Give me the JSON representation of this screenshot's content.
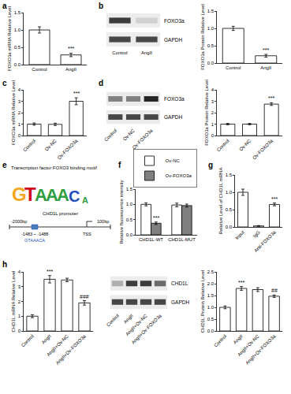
{
  "chart_data": [
    {
      "type": "bar",
      "y_title": "FOXO3a mRNA Relative Level",
      "categories": [
        "Control",
        "AngII"
      ],
      "values": [
        1.0,
        0.28
      ],
      "errors": [
        0.09,
        0.05
      ],
      "color": "#ffffff",
      "ylim": [
        0,
        1.5
      ],
      "yticks": [
        {
          "value": 0,
          "label": "0.0"
        },
        0.5,
        {
          "value": 1,
          "label": "1.0"
        },
        1.5
      ],
      "annotations": [
        {
          "category": "AngII",
          "text": "***"
        }
      ]
    },
    {
      "type": "bar",
      "y_title": "FOXO3a Protein Relative Level",
      "categories": [
        "Control",
        "AngII"
      ],
      "values": [
        1.0,
        0.21
      ],
      "errors": [
        0.06,
        0.04
      ],
      "color": "#ffffff",
      "ylim": [
        0,
        1.5
      ],
      "yticks": [
        {
          "value": 0,
          "label": "0.0"
        },
        0.5,
        {
          "value": 1,
          "label": "1.0"
        },
        1.5
      ],
      "annotations": [
        {
          "category": "AngII",
          "text": "***"
        }
      ]
    },
    {
      "type": "bar",
      "y_title": "FOXO3a mRNA Relative Level",
      "categories": [
        "Control",
        "Ov-NC",
        "Ov-FOXO3a"
      ],
      "values": [
        1.0,
        0.98,
        3.0
      ],
      "errors": [
        0.1,
        0.1,
        0.3
      ],
      "color": "#ffffff",
      "ylim": [
        0,
        4
      ],
      "yticks": [
        0,
        1,
        2,
        3,
        4
      ],
      "annotations": [
        {
          "category": "Ov-FOXO3a",
          "text": "***"
        }
      ]
    },
    {
      "type": "bar",
      "y_title": "FOXO3a Protein Relative Level",
      "categories": [
        "Control",
        "Ov-NC",
        "Ov-FOXO3a"
      ],
      "values": [
        1.0,
        1.0,
        2.75
      ],
      "errors": [
        0.06,
        0.06,
        0.12
      ],
      "color": "#ffffff",
      "ylim": [
        0,
        4
      ],
      "yticks": [
        0,
        1,
        2,
        3,
        4
      ],
      "annotations": [
        {
          "category": "Ov-FOXO3a",
          "text": "***"
        }
      ]
    },
    {
      "type": "bar",
      "y_title": "Relative fluorescence intensity",
      "categories": [
        "CHD1L-WT",
        "CHD1L-MUT"
      ],
      "series": [
        {
          "name": "Ov-NC",
          "color": "#ffffff",
          "values": [
            1.0,
            0.98
          ],
          "errors": [
            0.05,
            0.06
          ]
        },
        {
          "name": "Ov-FOXO3a",
          "color": "#808080",
          "values": [
            0.38,
            0.96
          ],
          "errors": [
            0.04,
            0.05
          ]
        }
      ],
      "ylim": [
        0,
        1.5
      ],
      "yticks": [
        {
          "value": 0,
          "label": "0.0"
        },
        0.5,
        {
          "value": 1,
          "label": "1.0"
        },
        1.5
      ],
      "legend": "upper right",
      "annotations": [
        {
          "category": "CHD1L-WT",
          "series": "Ov-FOXO3a",
          "text": "***"
        }
      ]
    },
    {
      "type": "bar",
      "y_title": "Relative Level of CHD1L mRNA",
      "categories": [
        "Input",
        "IgG",
        "Anti-FOXO3a"
      ],
      "values": [
        1.0,
        0.03,
        0.65
      ],
      "errors": [
        0.09,
        0.01,
        0.04
      ],
      "color": "#ffffff",
      "ylim": [
        0,
        1.5
      ],
      "yticks": [
        {
          "value": 0,
          "label": "0.0"
        },
        0.5,
        {
          "value": 1,
          "label": "1.0"
        },
        1.5
      ],
      "annotations": [
        {
          "category": "Anti-FOXO3a",
          "text": "***"
        }
      ]
    },
    {
      "type": "bar",
      "y_title": "CHD1L mRNA Relative Level",
      "categories": [
        "Control",
        "AngII",
        "AngII+Ov-NC",
        "AngII+Ov-FOXO3a"
      ],
      "values": [
        1.0,
        3.5,
        3.45,
        1.9
      ],
      "errors": [
        0.1,
        0.25,
        0.12,
        0.15
      ],
      "color": "#ffffff",
      "ylim": [
        0,
        4
      ],
      "yticks": [
        0,
        1,
        2,
        3,
        4
      ],
      "annotations": [
        {
          "category": "AngII",
          "text": "***"
        },
        {
          "category": "AngII+Ov-FOXO3a",
          "text": "###"
        }
      ]
    },
    {
      "type": "bar",
      "y_title": "CHD1L Protein Relative Level",
      "categories": [
        "Control",
        "AngII",
        "AngII+Ov-NC",
        "AngII+Ov-FOXO3a"
      ],
      "values": [
        1.0,
        1.8,
        1.75,
        1.47
      ],
      "errors": [
        0.06,
        0.08,
        0.08,
        0.05
      ],
      "color": "#ffffff",
      "ylim": [
        0,
        2.5
      ],
      "yticks": [
        {
          "value": 0,
          "label": "0.0"
        },
        0.5,
        {
          "value": 1,
          "label": "1.0"
        },
        1.5,
        {
          "value": 2,
          "label": "2.0"
        },
        2.5
      ],
      "annotations": [
        {
          "category": "AngII",
          "text": "***"
        },
        {
          "category": "AngII+Ov-FOXO3a",
          "text": "##"
        }
      ]
    }
  ],
  "figure": {
    "panel_labels": [
      "a",
      "b",
      "c",
      "d",
      "e",
      "f",
      "g",
      "h"
    ],
    "blots": [
      {
        "rows": [
          "FOXO3a",
          "GAPDH"
        ],
        "lanes": [
          "Control",
          "AngII"
        ]
      },
      {
        "rows": [
          "FOXO3a",
          "GAPDH"
        ],
        "lanes": [
          "Control",
          "Ov-NC",
          "Ov-FOXO3a"
        ]
      },
      {
        "rows": [
          "CHD1L",
          "GAPDH"
        ],
        "lanes": [
          "Control",
          "AngII",
          "AngII+Ov-NC",
          "AngII+Ov-FOXO3a"
        ]
      }
    ],
    "motif": {
      "title": "Transcription factor FOXO3 binding motif",
      "letters": [
        "G",
        "T",
        "A",
        "A",
        "A",
        "C",
        "A"
      ],
      "colors": [
        "#f5a623",
        "#d0021b",
        "#2e9e3e",
        "#2e9e3e",
        "#2e9e3e",
        "#1f4fbf",
        "#2e9e3e"
      ]
    },
    "promoter": {
      "title": "CHD1L promoter",
      "start": "-2000bp",
      "end": "100bp",
      "tss": "TSS",
      "site": "-1483 ~ -1488",
      "site_seq": "GTAAACA"
    }
  }
}
